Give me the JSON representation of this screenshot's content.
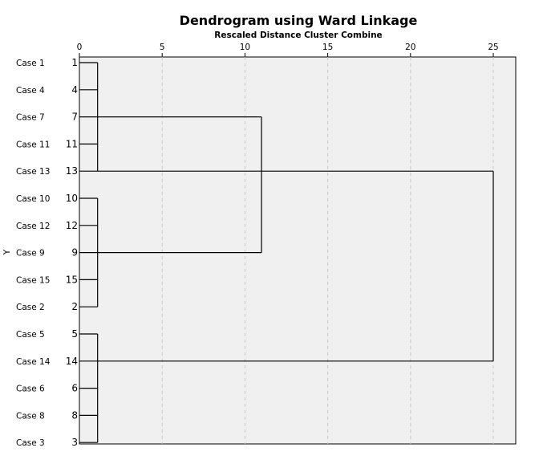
{
  "chart_data": {
    "type": "dendrogram",
    "title": "Dendrogram using Ward Linkage",
    "subtitle": "Rescaled Distance Cluster Combine",
    "ylabel": "Y",
    "xlim": [
      0,
      25
    ],
    "xticks": [
      0,
      5,
      10,
      15,
      20,
      25
    ],
    "grid": true,
    "colors": {
      "plot_background": "#f0f0f0",
      "gridline": "#c8c8c8",
      "line": "#000000"
    },
    "leaves": [
      {
        "label": "Case 1",
        "id": "1"
      },
      {
        "label": "Case 4",
        "id": "4"
      },
      {
        "label": "Case 7",
        "id": "7"
      },
      {
        "label": "Case 11",
        "id": "11"
      },
      {
        "label": "Case 13",
        "id": "13"
      },
      {
        "label": "Case 10",
        "id": "10"
      },
      {
        "label": "Case 12",
        "id": "12"
      },
      {
        "label": "Case 9",
        "id": "9"
      },
      {
        "label": "Case 15",
        "id": "15"
      },
      {
        "label": "Case 2",
        "id": "2"
      },
      {
        "label": "Case 5",
        "id": "5"
      },
      {
        "label": "Case 14",
        "id": "14"
      },
      {
        "label": "Case 6",
        "id": "6"
      },
      {
        "label": "Case 8",
        "id": "8"
      },
      {
        "label": "Case 3",
        "id": "3"
      }
    ],
    "merges": [
      {
        "children": [
          "1",
          "4",
          "7",
          "11",
          "13"
        ],
        "distance": 1.1
      },
      {
        "children": [
          "10",
          "12",
          "9",
          "15",
          "2"
        ],
        "distance": 1.1
      },
      {
        "children": [
          "5",
          "14",
          "6",
          "8",
          "3"
        ],
        "distance": 1.1
      },
      {
        "children": [
          "7",
          "9"
        ],
        "distance": 11
      },
      {
        "children": [
          "13",
          "14"
        ],
        "distance": 25
      }
    ]
  }
}
